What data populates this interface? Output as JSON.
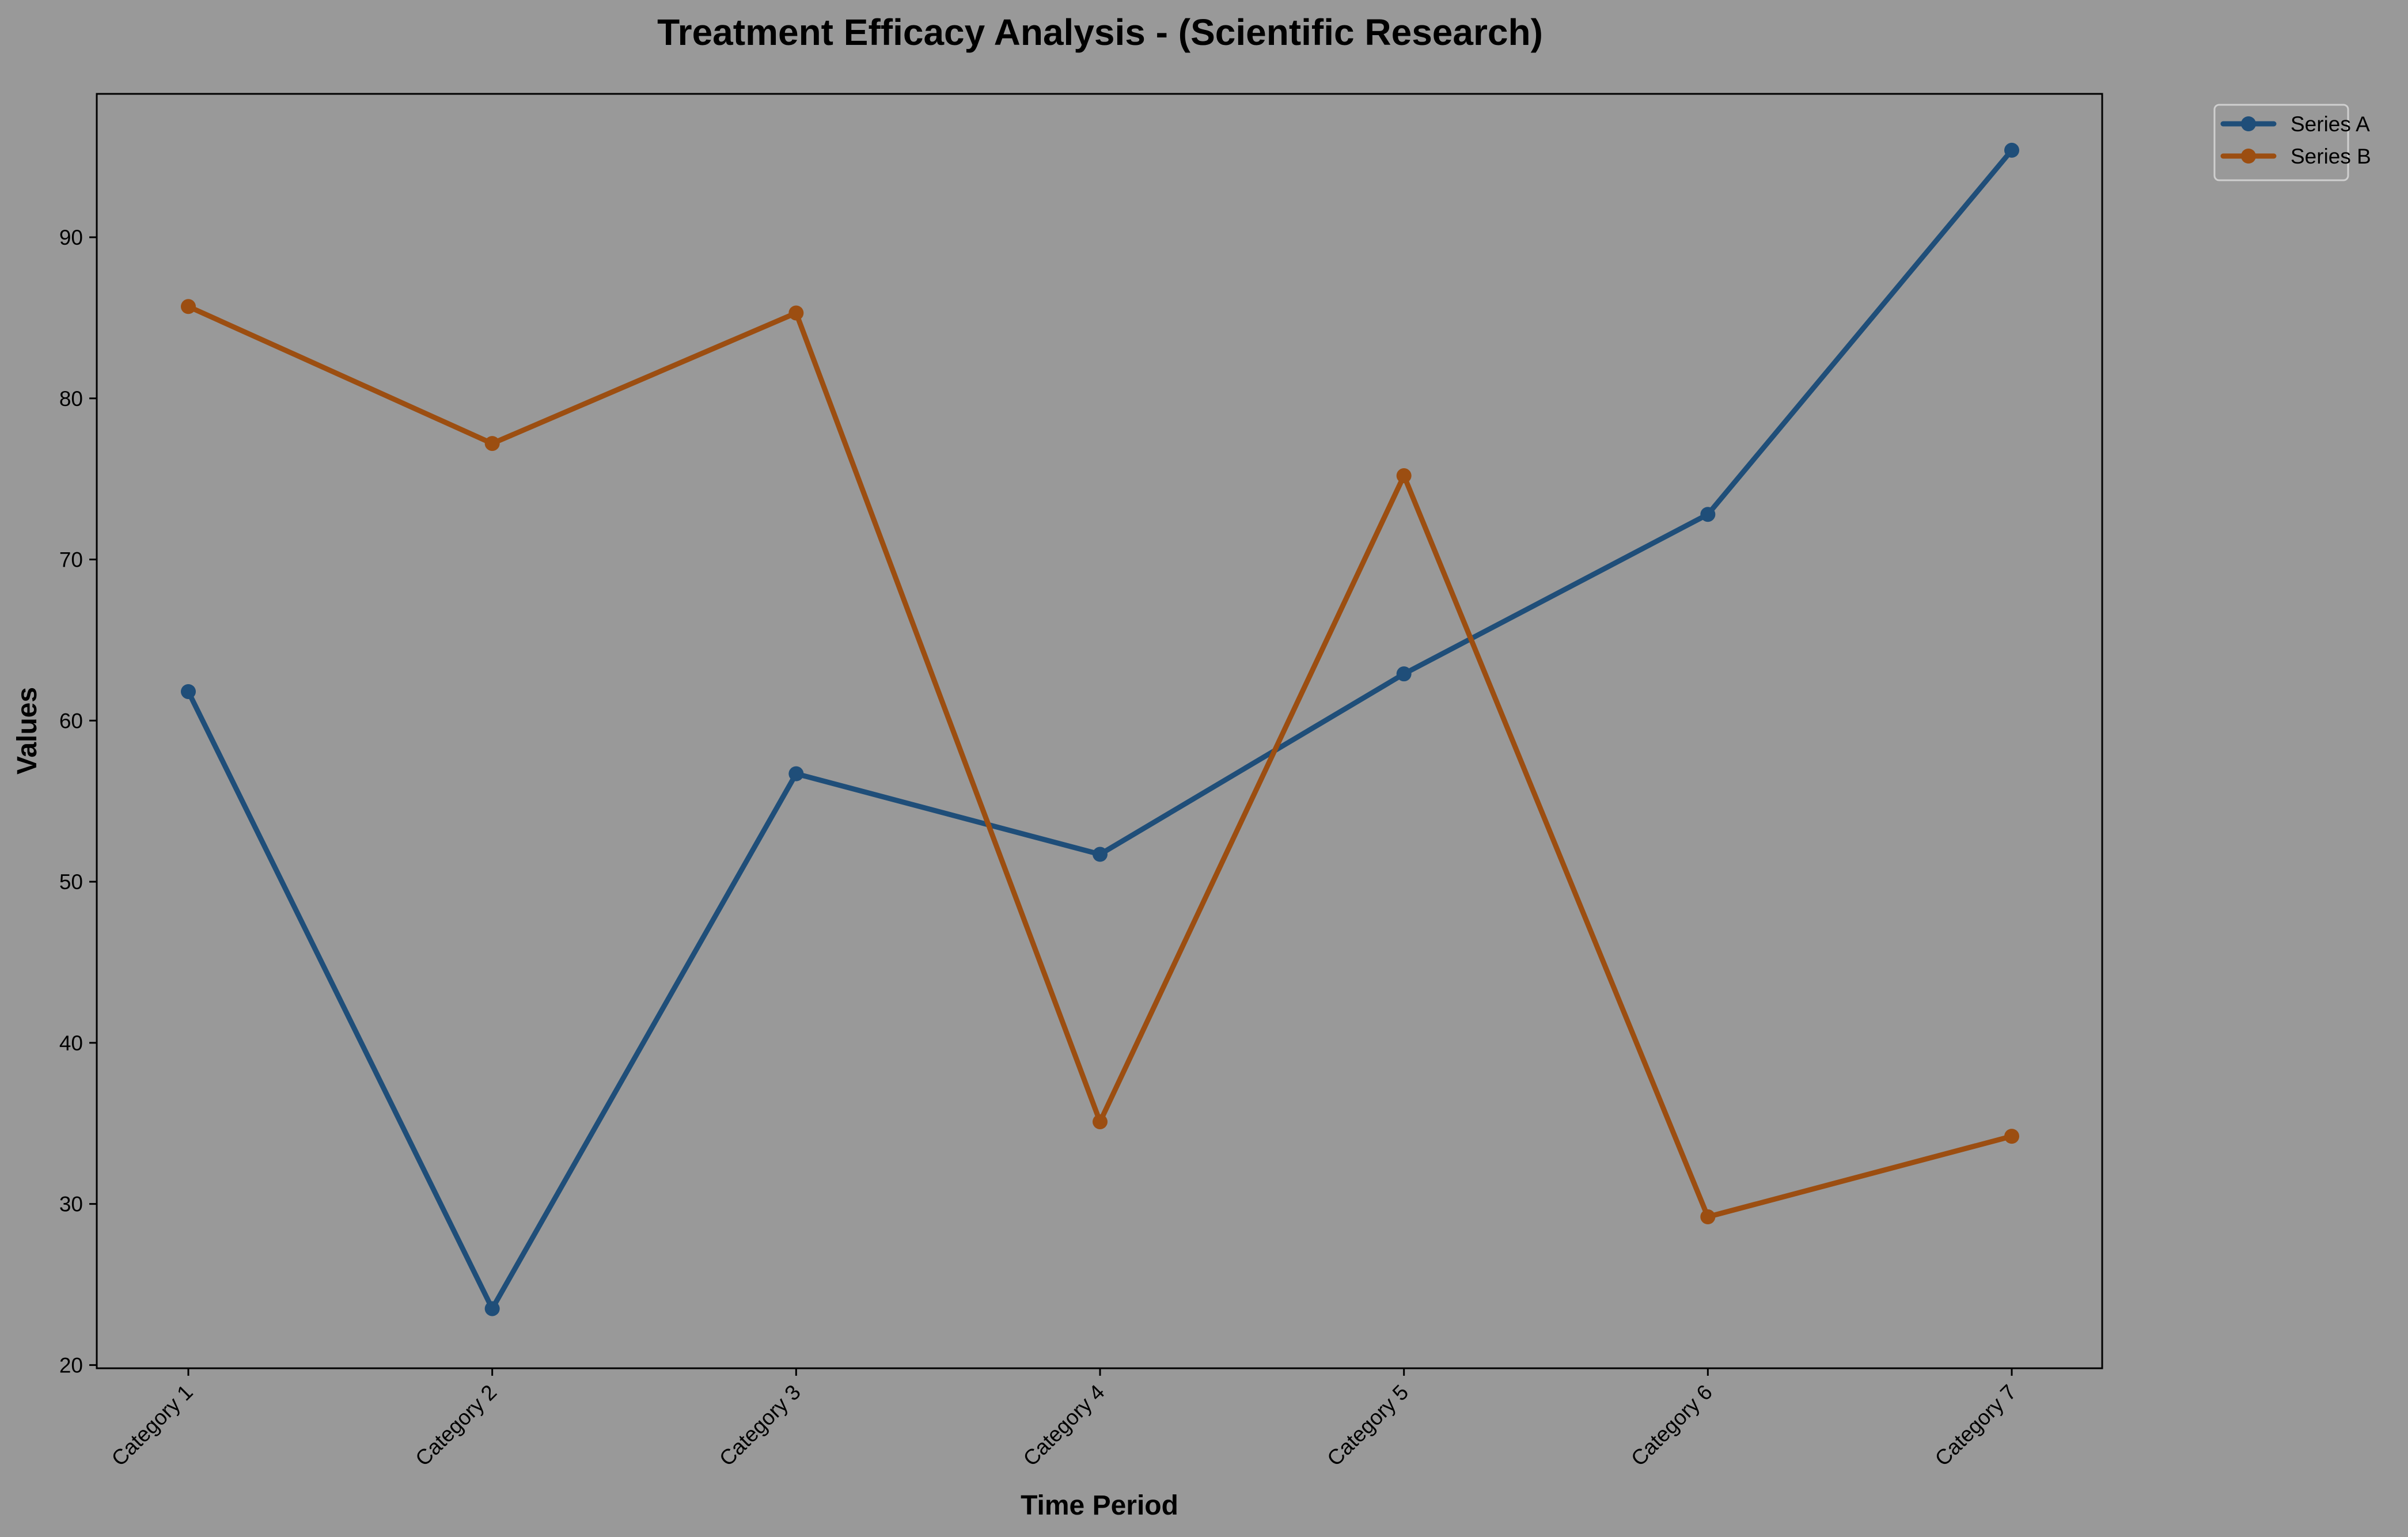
{
  "chart_data": {
    "type": "line",
    "title": "Treatment Efficacy Analysis - (Scientific Research)",
    "xlabel": "Time Period",
    "ylabel": "Values",
    "categories": [
      "Category 1",
      "Category 2",
      "Category 3",
      "Category 4",
      "Category 5",
      "Category 6",
      "Category 7"
    ],
    "ylim": [
      19.8,
      98.9
    ],
    "yticks": [
      20,
      30,
      40,
      50,
      60,
      70,
      80,
      90
    ],
    "grid": false,
    "legend_position": "outside top-right",
    "series": [
      {
        "name": "Series A",
        "color": "#1f4e79",
        "marker": "circle",
        "values": [
          61.8,
          23.5,
          56.7,
          51.7,
          62.9,
          72.8,
          95.4
        ]
      },
      {
        "name": "Series B",
        "color": "#9c4e11",
        "marker": "circle",
        "values": [
          85.7,
          77.2,
          85.3,
          35.1,
          75.2,
          29.2,
          34.2
        ]
      }
    ],
    "colors": {
      "background": "#999999",
      "plot_background": "#999999",
      "axis": "#000000"
    }
  }
}
